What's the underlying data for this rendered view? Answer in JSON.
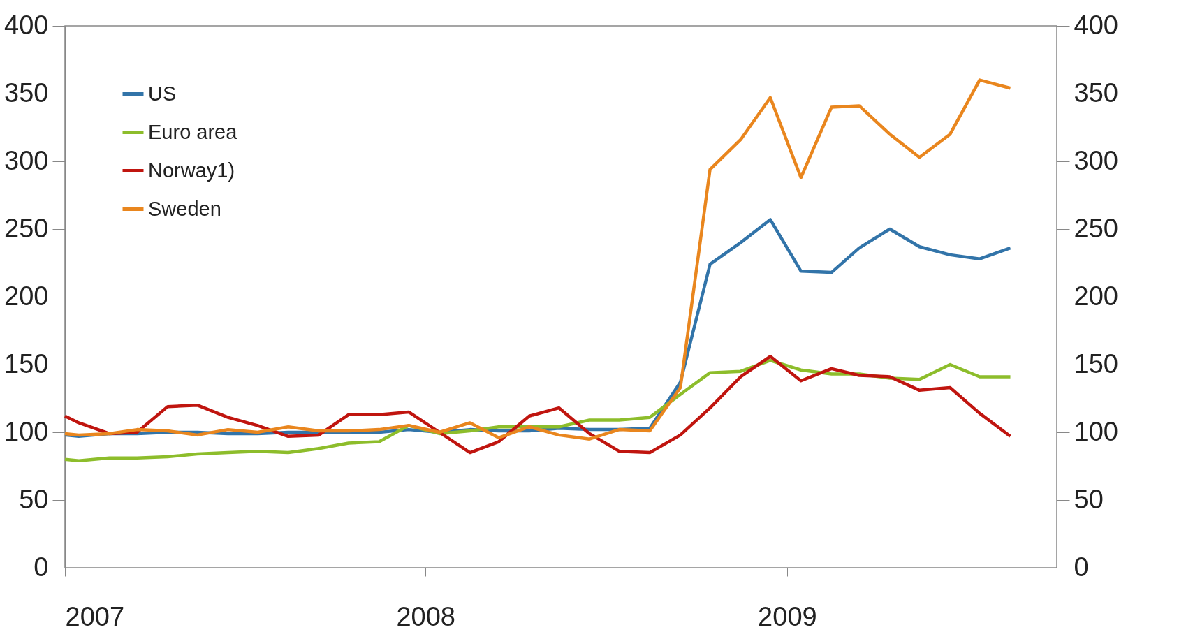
{
  "chart_data": {
    "type": "line",
    "x": [
      "2007-01-01",
      "2007-01-15",
      "2007-02-15",
      "2007-03-15",
      "2007-04-15",
      "2007-05-15",
      "2007-06-15",
      "2007-07-15",
      "2007-08-15",
      "2007-09-15",
      "2007-10-15",
      "2007-11-15",
      "2007-12-15",
      "2008-01-15",
      "2008-02-15",
      "2008-03-15",
      "2008-04-15",
      "2008-05-15",
      "2008-06-15",
      "2008-07-15",
      "2008-08-15",
      "2008-09-15",
      "2008-10-15",
      "2008-11-15",
      "2008-12-15",
      "2009-01-15",
      "2009-02-15",
      "2009-03-15",
      "2009-04-15",
      "2009-05-15",
      "2009-06-15",
      "2009-07-15",
      "2009-08-15"
    ],
    "series": [
      {
        "name": "US",
        "color": "#3274a9",
        "values": [
          98,
          97,
          99,
          99,
          100,
          100,
          99,
          99,
          100,
          100,
          100,
          100,
          102,
          100,
          102,
          101,
          101,
          103,
          102,
          102,
          103,
          137,
          224,
          240,
          257,
          219,
          218,
          236,
          250,
          237,
          231,
          228,
          236
        ]
      },
      {
        "name": "Euro area",
        "color": "#8dbd2b",
        "values": [
          80,
          79,
          81,
          81,
          82,
          84,
          85,
          86,
          85,
          88,
          92,
          93,
          105,
          99,
          101,
          104,
          104,
          104,
          109,
          109,
          111,
          128,
          144,
          145,
          153,
          146,
          143,
          143,
          140,
          139,
          150,
          141,
          141
        ]
      },
      {
        "name": "Norway1)",
        "color": "#c0150f",
        "values": [
          112,
          107,
          99,
          100,
          119,
          120,
          111,
          105,
          97,
          98,
          113,
          113,
          115,
          100,
          85,
          93,
          112,
          118,
          99,
          86,
          85,
          98,
          118,
          141,
          156,
          138,
          147,
          142,
          141,
          131,
          133,
          114,
          97
        ]
      },
      {
        "name": "Sweden",
        "color": "#e9861e",
        "values": [
          99,
          98,
          99,
          102,
          101,
          98,
          102,
          100,
          104,
          101,
          101,
          102,
          105,
          100,
          107,
          96,
          104,
          98,
          95,
          102,
          101,
          133,
          294,
          316,
          347,
          288,
          340,
          341,
          320,
          303,
          320,
          360,
          354
        ]
      }
    ],
    "xlim": [
      "2007-01-01",
      "2009-10-01"
    ],
    "xticks": [
      "2007",
      "2008",
      "2009"
    ],
    "ylim": [
      0,
      400
    ],
    "yticks": [
      0,
      50,
      100,
      150,
      200,
      250,
      300,
      350,
      400
    ],
    "y2lim": [
      0,
      400
    ],
    "y2ticks": [
      0,
      50,
      100,
      150,
      200,
      250,
      300,
      350,
      400
    ],
    "grid": false,
    "legend": "top left",
    "marker": "none",
    "line_style": "solid"
  }
}
